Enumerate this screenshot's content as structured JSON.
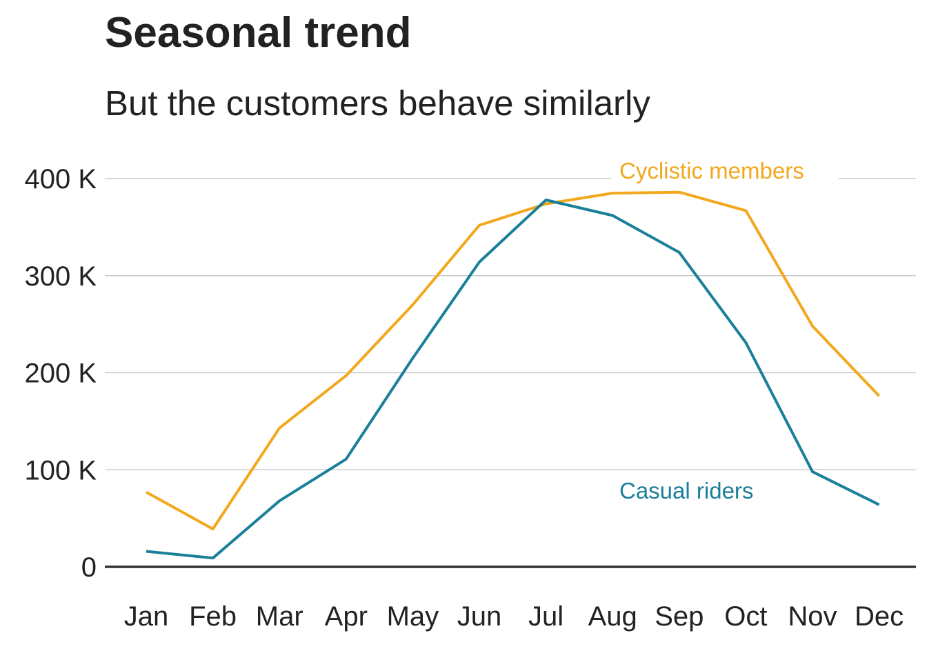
{
  "chart_data": {
    "type": "line",
    "title": "Seasonal trend",
    "subtitle": "But the customers behave similarly",
    "xlabel": "",
    "ylabel": "",
    "categories": [
      "Jan",
      "Feb",
      "Mar",
      "Apr",
      "May",
      "Jun",
      "Jul",
      "Aug",
      "Sep",
      "Oct",
      "Nov",
      "Dec"
    ],
    "ylim": [
      0,
      400000
    ],
    "yticks": [
      0,
      100000,
      200000,
      300000,
      400000
    ],
    "ytick_labels": [
      "0",
      "100 K",
      "200 K",
      "300 K",
      "400 K"
    ],
    "grid": true,
    "legend": "direct labels on lines",
    "series": [
      {
        "name": "Casual riders",
        "color": "#1a7f99",
        "values": [
          16000,
          9000,
          68000,
          111000,
          215000,
          314000,
          378000,
          362000,
          324000,
          231000,
          98000,
          64000
        ],
        "label_anchor": "Aug"
      },
      {
        "name": "Cyclistic members",
        "color": "#f2a81d",
        "values": [
          77000,
          39000,
          143000,
          197000,
          270000,
          352000,
          374000,
          385000,
          386000,
          367000,
          248000,
          176000
        ],
        "label_anchor": "Aug"
      }
    ]
  }
}
